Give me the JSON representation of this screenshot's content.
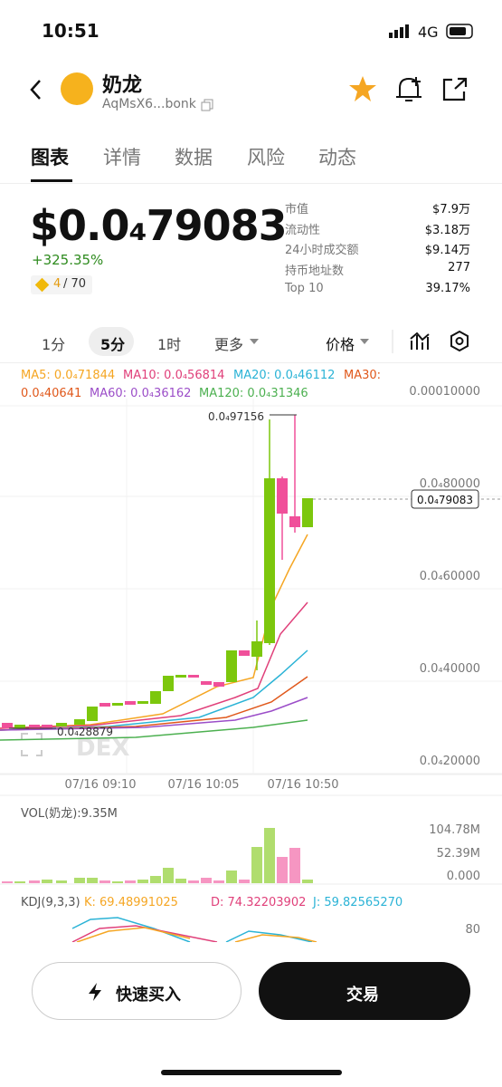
{
  "status_bar": {
    "time": "10:51",
    "network": "4G"
  },
  "header": {
    "title": "奶龙",
    "address": "AqMsX6...bonk"
  },
  "tabs": [
    "图表",
    "详情",
    "数据",
    "风险",
    "动态"
  ],
  "price": {
    "value": "$0.0₄79083",
    "change": "+325.35%",
    "rank": "4",
    "rank_total": "/ 70"
  },
  "stats": [
    [
      "市值",
      "$7.9万"
    ],
    [
      "流动性",
      "$3.18万"
    ],
    [
      "24小时成交额",
      "$9.14万"
    ],
    [
      "持币地址数",
      "277"
    ],
    [
      "Top 10",
      "39.17%"
    ]
  ],
  "intervals": [
    "1分",
    "5分",
    "1时",
    "更多"
  ],
  "price_mode": "价格",
  "ma_labels": [
    "MA5: 0.0₄71844",
    "MA10: 0.0₄56814",
    "MA20: 0.0₄46112",
    "MA30:",
    "0.0₄40641",
    "MA60: 0.0₄36162",
    "MA120: 0.0₄31346"
  ],
  "y_labels": [
    "0.00010000",
    "0.0₄80000",
    "0.0₄60000",
    "0.0₄40000",
    "0.0₄20000"
  ],
  "high_label": "0.0₄97156",
  "current_label": "0.0₄79083",
  "low_label": "0.0₄28879",
  "watermark": "DEX",
  "x_labels": [
    "07/16 09:10",
    "07/16 10:05",
    "07/16 10:50"
  ],
  "volume": {
    "label": "VOL(奶龙):9.35M",
    "y_labels": [
      "104.78M",
      "52.39M",
      "0.000"
    ]
  },
  "kdj": {
    "label": "KDJ(9,3,3)",
    "k": "K: 69.48991025",
    "d": "D: 74.32203902",
    "j": "J: 59.82565270",
    "y_label": "80"
  },
  "buttons": {
    "quick_buy": "快速买入",
    "trade": "交易"
  }
}
